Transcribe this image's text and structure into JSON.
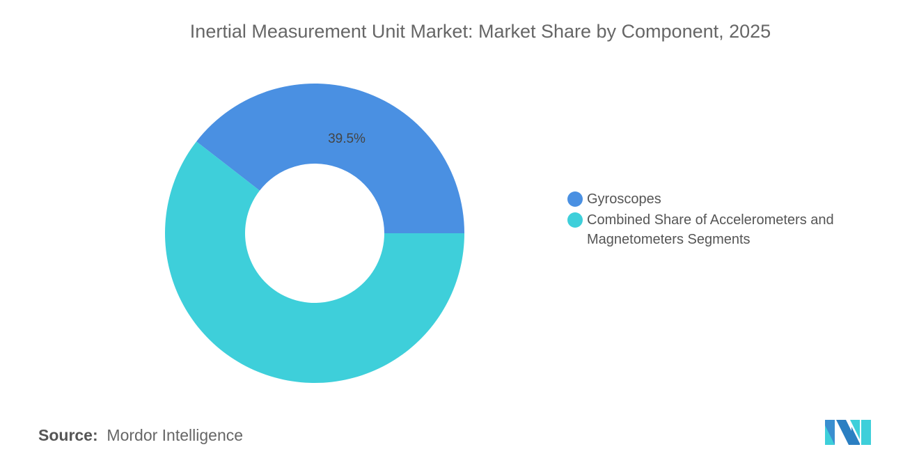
{
  "chart_data": {
    "type": "pie",
    "donut": true,
    "title": "Inertial Measurement Unit Market: Market Share by Component, 2025",
    "slices": [
      {
        "name": "Gyroscopes",
        "value": 39.5,
        "label": "39.5%",
        "color": "#4a90e2"
      },
      {
        "name": "Combined Share of Accelerometers and Magnetometers Segments",
        "value": 60.5,
        "label": "",
        "color": "#3ecfda"
      }
    ],
    "legend_position": "right"
  },
  "source": {
    "label": "Source:",
    "value": "Mordor Intelligence"
  },
  "logo": {
    "text": "Mordor Intelligence"
  }
}
